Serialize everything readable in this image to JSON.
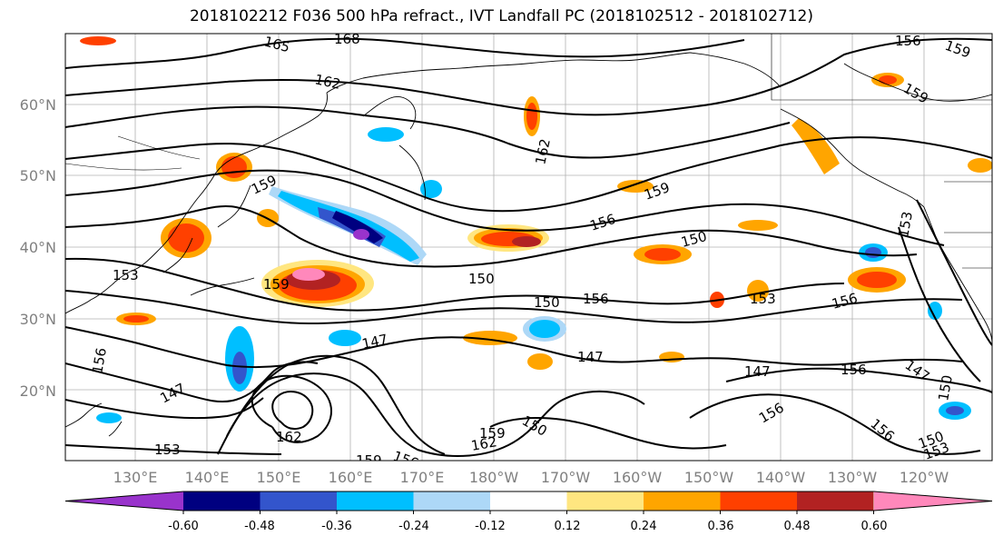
{
  "title": "2018102212 F036 500 hPa refract., IVT Landfall PC (2018102512 - 2018102712)",
  "map": {
    "lat_labels": [
      "60°N",
      "50°N",
      "40°N",
      "30°N",
      "20°N"
    ],
    "lon_labels": [
      "130°E",
      "140°E",
      "150°E",
      "160°E",
      "170°E",
      "180°W",
      "170°W",
      "160°W",
      "150°W",
      "140°W",
      "130°W",
      "120°W"
    ],
    "contour_labels": [
      "165",
      "168",
      "162",
      "162",
      "159",
      "159",
      "156",
      "159",
      "150",
      "150",
      "153",
      "153",
      "150",
      "156",
      "147",
      "147",
      "147",
      "147",
      "156",
      "156",
      "159",
      "162",
      "162",
      "150",
      "159",
      "156",
      "153",
      "156",
      "156",
      "159",
      "153",
      "150",
      "147",
      "150",
      "153",
      "156",
      "159",
      "156"
    ]
  },
  "colorbar": {
    "colors": [
      "#9933cc",
      "#000080",
      "#3355cc",
      "#00bfff",
      "#add8f7",
      "#ffffff",
      "#ffe680",
      "#ffa500",
      "#ff4000",
      "#b22222",
      "#ff88bb"
    ],
    "tick_labels": [
      "-0.60",
      "-0.48",
      "-0.36",
      "-0.24",
      "-0.12",
      "0.12",
      "0.24",
      "0.36",
      "0.48",
      "0.60"
    ]
  }
}
